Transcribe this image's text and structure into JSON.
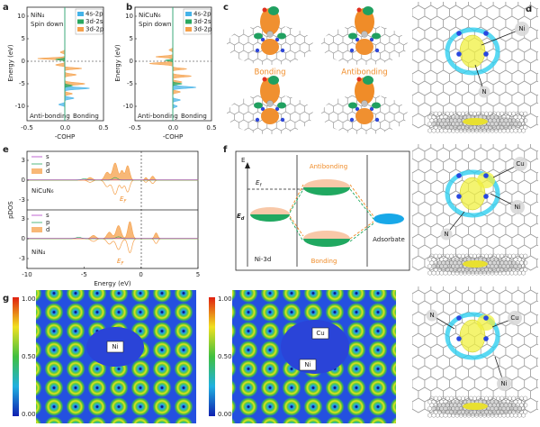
{
  "panels": {
    "a": {
      "label": "a",
      "title": "NiN₄",
      "subtitle": "Spin down",
      "legend": [
        "4s-2p",
        "3d-2s",
        "3d-2p"
      ],
      "ylabel": "Energy (eV)",
      "yticks": [
        "10",
        "5",
        "0",
        "-5",
        "-10"
      ],
      "xticks": [
        "-0.5",
        "0.0",
        "0.5"
      ],
      "xlabel": "-COHP",
      "left_note": "Anti-bonding",
      "right_note": "Bonding"
    },
    "b": {
      "label": "b",
      "title": "NiCuN₆",
      "subtitle": "Spin down",
      "legend": [
        "4s-2p",
        "3d-2s",
        "3d-2p"
      ],
      "ylabel": "Energy (eV)",
      "yticks": [
        "10",
        "5",
        "0",
        "-5",
        "-10"
      ],
      "xticks": [
        "-0.5",
        "0.0",
        "0.5"
      ],
      "xlabel": "-COHP",
      "left_note": "Anti-bonding",
      "right_note": "Bonding"
    },
    "c": {
      "label": "c",
      "bonding": "Bonding",
      "antibonding": "Antibonding"
    },
    "d": {
      "label": "d",
      "top": [
        "Ni",
        "N"
      ],
      "middle": [
        "Cu",
        "N",
        "Ni"
      ],
      "bottom": [
        "N",
        "Cu",
        "Ni"
      ]
    },
    "e": {
      "label": "e",
      "legend": [
        "s",
        "p",
        "d"
      ],
      "top_name": "NiCuN₆",
      "bottom_name": "NiN₄",
      "fermi": {
        "main": "E",
        "sub": "F"
      },
      "yticks": [
        "3",
        "0",
        "-3"
      ],
      "xticks": [
        "-10",
        "-5",
        "0",
        "5"
      ],
      "xlabel": "Energy (eV)",
      "ylabel": "pDOS"
    },
    "f": {
      "label": "f",
      "axis": "E",
      "ef": {
        "main": "E",
        "sub": "f"
      },
      "ed": {
        "main": "E",
        "sub": "d"
      },
      "antibonding": "Antibonding",
      "bonding": "Bonding",
      "left": "Ni-3d",
      "right": "Adsorbate"
    },
    "g": {
      "label": "g",
      "colorbar": [
        "1.00",
        "0.50",
        "0.00"
      ],
      "left_atoms": [
        "Ni"
      ],
      "right_atoms": [
        "Cu",
        "Ni"
      ]
    }
  }
}
